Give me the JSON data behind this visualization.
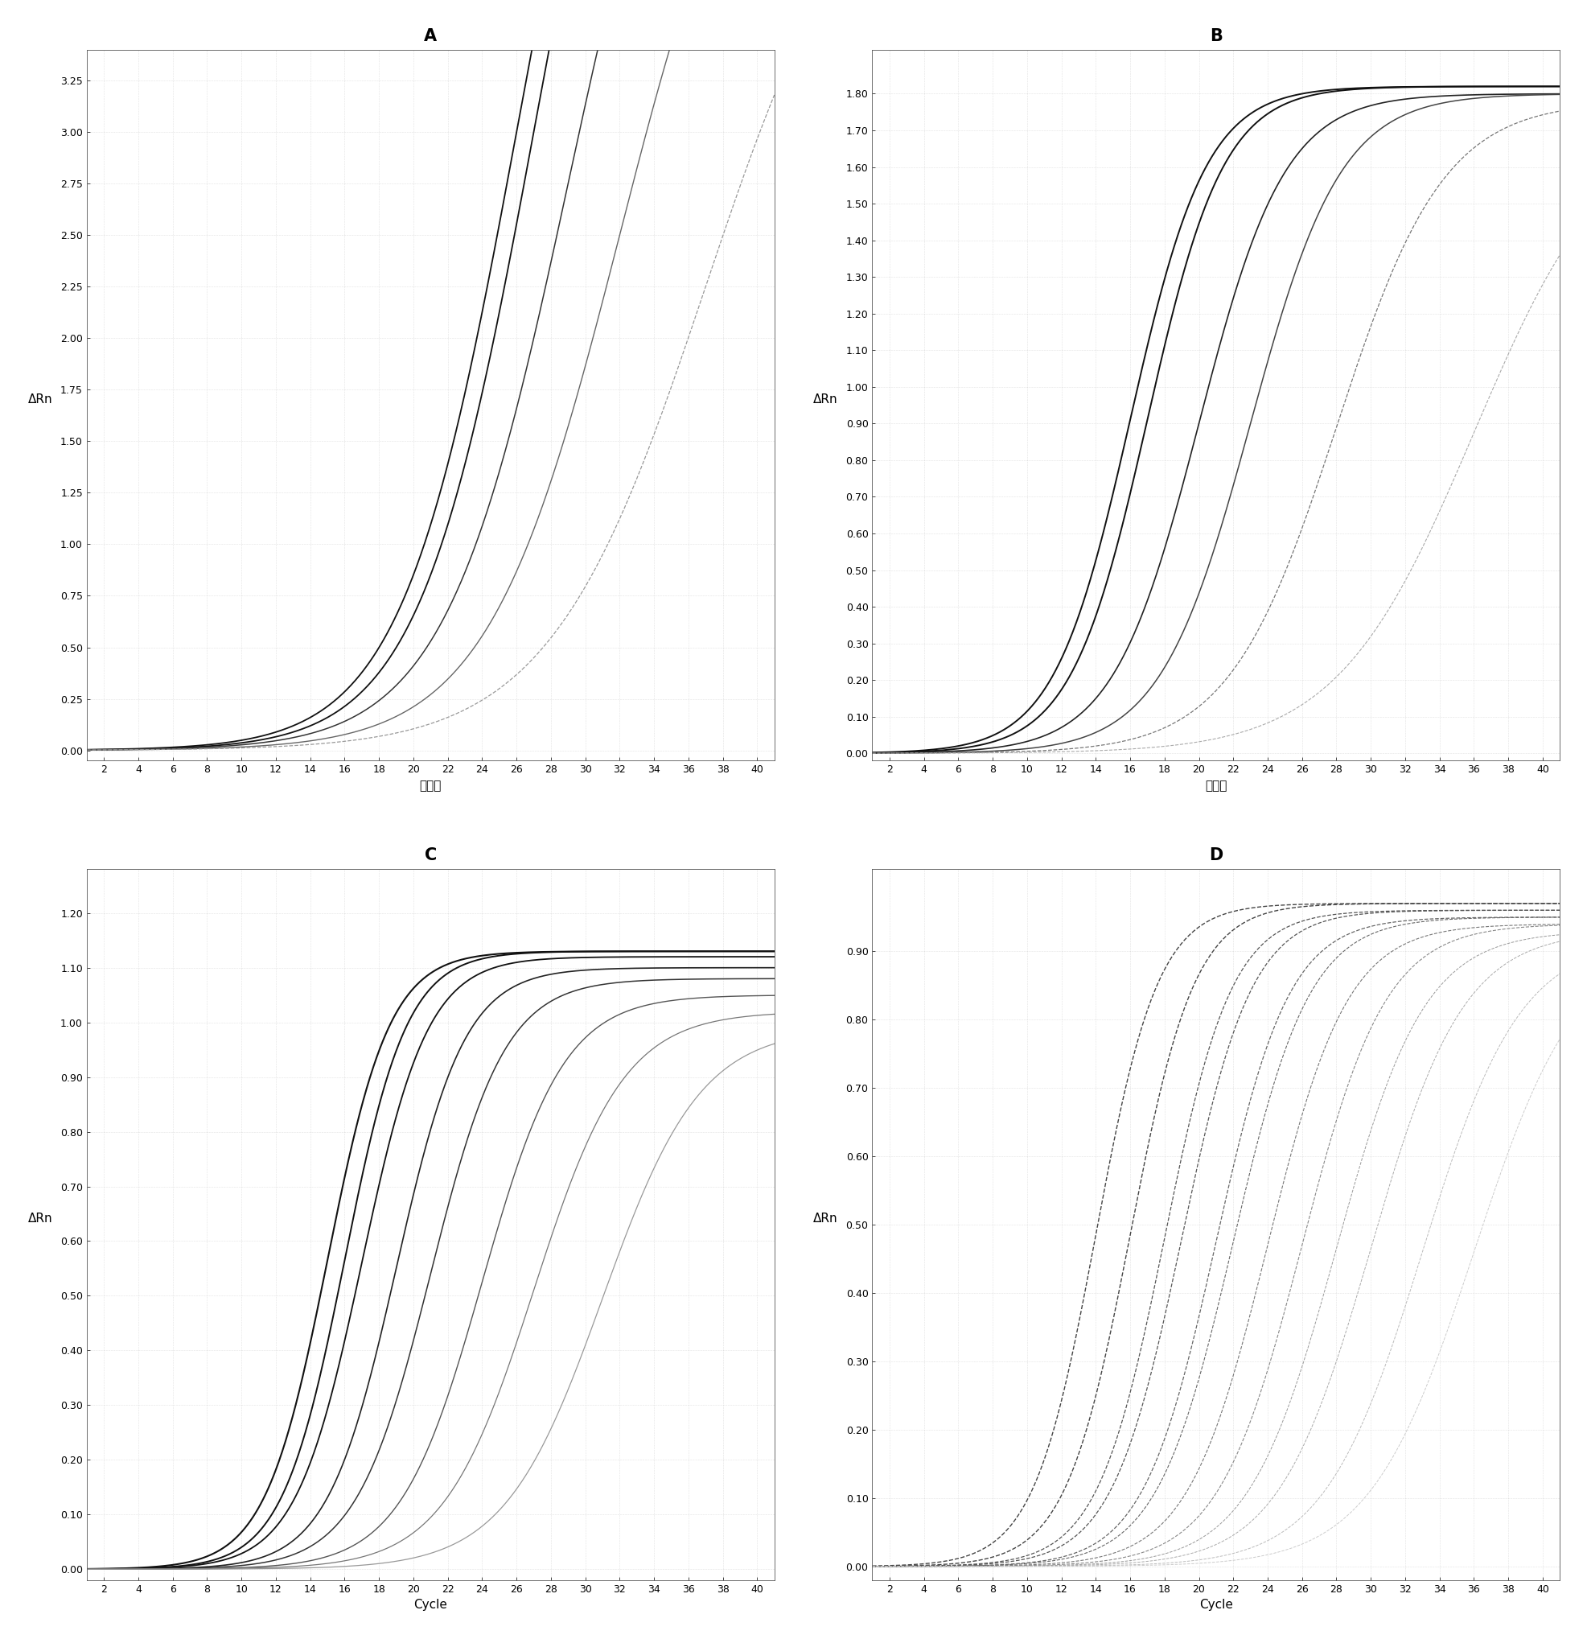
{
  "panel_titles": [
    "A",
    "B",
    "C",
    "D"
  ],
  "xlabel_AB": "循环数",
  "xlabel_CD": "Cycle",
  "ylabel": "ΔRn",
  "panel_A": {
    "ylim": [
      -0.05,
      3.4
    ],
    "yticks": [
      0.0,
      0.25,
      0.5,
      0.75,
      1.0,
      1.25,
      1.5,
      1.75,
      2.0,
      2.25,
      2.5,
      2.75,
      3.0,
      3.25
    ],
    "curves": [
      {
        "L": 6.0,
        "k": 0.3,
        "x0": 26,
        "color": "#111111",
        "lw": 1.3,
        "ls": "-"
      },
      {
        "L": 6.0,
        "k": 0.3,
        "x0": 27,
        "color": "#111111",
        "lw": 1.3,
        "ls": "-"
      },
      {
        "L": 5.5,
        "k": 0.28,
        "x0": 29,
        "color": "#333333",
        "lw": 1.1,
        "ls": "-"
      },
      {
        "L": 5.0,
        "k": 0.26,
        "x0": 32,
        "color": "#666666",
        "lw": 1.0,
        "ls": "-"
      },
      {
        "L": 4.5,
        "k": 0.22,
        "x0": 37,
        "color": "#999999",
        "lw": 0.9,
        "ls": "--"
      }
    ]
  },
  "panel_B": {
    "ylim": [
      -0.02,
      1.92
    ],
    "yticks": [
      0.0,
      0.1,
      0.2,
      0.3,
      0.4,
      0.5,
      0.6,
      0.7,
      0.8,
      0.9,
      1.0,
      1.1,
      1.2,
      1.3,
      1.4,
      1.5,
      1.6,
      1.7,
      1.8
    ],
    "curves": [
      {
        "L": 1.82,
        "k": 0.45,
        "x0": 16,
        "color": "#111111",
        "lw": 1.4,
        "ls": "-"
      },
      {
        "L": 1.82,
        "k": 0.45,
        "x0": 17,
        "color": "#111111",
        "lw": 1.4,
        "ls": "-"
      },
      {
        "L": 1.8,
        "k": 0.4,
        "x0": 20,
        "color": "#222222",
        "lw": 1.2,
        "ls": "-"
      },
      {
        "L": 1.8,
        "k": 0.38,
        "x0": 23,
        "color": "#444444",
        "lw": 1.1,
        "ls": "-"
      },
      {
        "L": 1.78,
        "k": 0.32,
        "x0": 28,
        "color": "#777777",
        "lw": 0.9,
        "ls": "--"
      },
      {
        "L": 1.75,
        "k": 0.25,
        "x0": 36,
        "color": "#aaaaaa",
        "lw": 0.8,
        "ls": "--"
      }
    ]
  },
  "panel_C": {
    "ylim": [
      -0.02,
      1.28
    ],
    "yticks": [
      0.0,
      0.1,
      0.2,
      0.3,
      0.4,
      0.5,
      0.6,
      0.7,
      0.8,
      0.9,
      1.0,
      1.1,
      1.2
    ],
    "curves": [
      {
        "L": 1.13,
        "k": 0.55,
        "x0": 15,
        "color": "#111111",
        "lw": 1.5,
        "ls": "-"
      },
      {
        "L": 1.13,
        "k": 0.55,
        "x0": 16,
        "color": "#111111",
        "lw": 1.4,
        "ls": "-"
      },
      {
        "L": 1.12,
        "k": 0.52,
        "x0": 17,
        "color": "#111111",
        "lw": 1.3,
        "ls": "-"
      },
      {
        "L": 1.1,
        "k": 0.5,
        "x0": 19,
        "color": "#222222",
        "lw": 1.2,
        "ls": "-"
      },
      {
        "L": 1.08,
        "k": 0.46,
        "x0": 21,
        "color": "#333333",
        "lw": 1.1,
        "ls": "-"
      },
      {
        "L": 1.05,
        "k": 0.42,
        "x0": 24,
        "color": "#555555",
        "lw": 1.0,
        "ls": "-"
      },
      {
        "L": 1.02,
        "k": 0.38,
        "x0": 27,
        "color": "#777777",
        "lw": 0.9,
        "ls": "-"
      },
      {
        "L": 0.99,
        "k": 0.35,
        "x0": 31,
        "color": "#999999",
        "lw": 0.9,
        "ls": "-"
      }
    ]
  },
  "panel_D": {
    "ylim": [
      -0.02,
      1.02
    ],
    "yticks": [
      0.0,
      0.1,
      0.2,
      0.3,
      0.4,
      0.5,
      0.6,
      0.7,
      0.8,
      0.9
    ],
    "curves": [
      {
        "L": 0.97,
        "k": 0.55,
        "x0": 14,
        "color": "#444444",
        "lw": 1.0,
        "ls": "--"
      },
      {
        "L": 0.97,
        "k": 0.53,
        "x0": 16,
        "color": "#444444",
        "lw": 1.0,
        "ls": "--"
      },
      {
        "L": 0.96,
        "k": 0.51,
        "x0": 18,
        "color": "#555555",
        "lw": 0.9,
        "ls": "--"
      },
      {
        "L": 0.96,
        "k": 0.49,
        "x0": 19,
        "color": "#555555",
        "lw": 0.9,
        "ls": "--"
      },
      {
        "L": 0.95,
        "k": 0.47,
        "x0": 21,
        "color": "#666666",
        "lw": 0.9,
        "ls": "--"
      },
      {
        "L": 0.95,
        "k": 0.45,
        "x0": 22,
        "color": "#666666",
        "lw": 0.8,
        "ls": "--"
      },
      {
        "L": 0.94,
        "k": 0.43,
        "x0": 24,
        "color": "#777777",
        "lw": 0.8,
        "ls": "--"
      },
      {
        "L": 0.94,
        "k": 0.41,
        "x0": 26,
        "color": "#888888",
        "lw": 0.8,
        "ls": "--"
      },
      {
        "L": 0.93,
        "k": 0.39,
        "x0": 28,
        "color": "#999999",
        "lw": 0.7,
        "ls": "--"
      },
      {
        "L": 0.93,
        "k": 0.37,
        "x0": 30,
        "color": "#aaaaaa",
        "lw": 0.7,
        "ls": "--"
      },
      {
        "L": 0.92,
        "k": 0.35,
        "x0": 33,
        "color": "#bbbbbb",
        "lw": 0.7,
        "ls": "--"
      },
      {
        "L": 0.92,
        "k": 0.33,
        "x0": 36,
        "color": "#cccccc",
        "lw": 0.7,
        "ls": "--"
      }
    ]
  },
  "xlim": [
    1,
    41
  ],
  "xticks": [
    2,
    4,
    6,
    8,
    10,
    12,
    14,
    16,
    18,
    20,
    22,
    24,
    26,
    28,
    30,
    32,
    34,
    36,
    38,
    40
  ],
  "background_color": "#ffffff",
  "grid_color": "#bbbbbb",
  "tick_fontsize": 9,
  "label_fontsize": 11,
  "title_fontsize": 15
}
